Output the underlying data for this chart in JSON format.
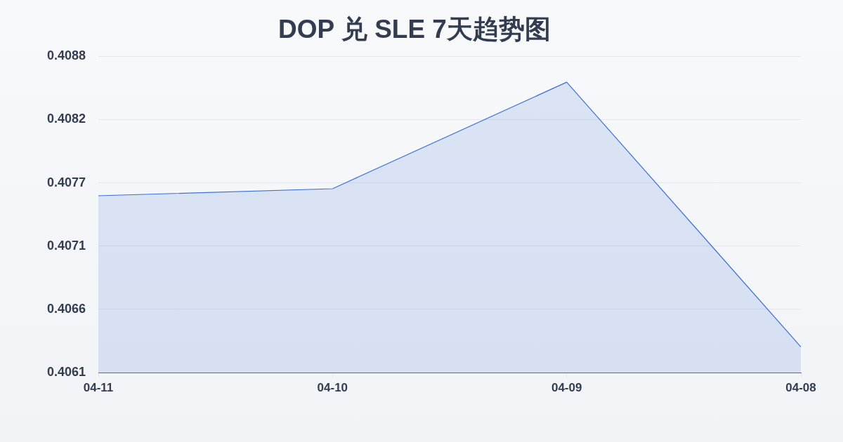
{
  "chart_data": {
    "type": "area",
    "title": "DOP 兑 SLE 7天趋势图",
    "categories": [
      "04-11",
      "04-10",
      "04-09",
      "04-08"
    ],
    "values": [
      0.40757,
      0.40763,
      0.40854,
      0.40628
    ],
    "color": "#3b6fd4",
    "ylim": [
      0.40606,
      0.40876
    ],
    "yticks": [
      {
        "value": 0.40606,
        "label": "0.4061"
      },
      {
        "value": 0.4066,
        "label": "0.4066"
      },
      {
        "value": 0.40714,
        "label": "0.4071"
      },
      {
        "value": 0.40768,
        "label": "0.4077"
      },
      {
        "value": 0.40822,
        "label": "0.4082"
      },
      {
        "value": 0.40876,
        "label": "0.4088"
      }
    ],
    "grid": "y",
    "marker": "none"
  }
}
